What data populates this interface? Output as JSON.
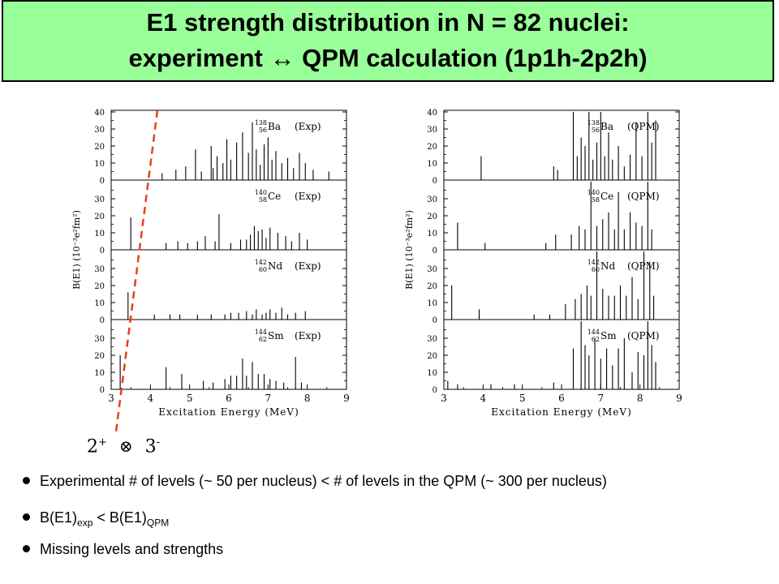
{
  "title": {
    "line1": "E1 strength distribution in N = 82 nuclei:",
    "line2_left": "experiment ",
    "line2_arrow": "↔",
    "line2_right": " QPM calculation (1p1h-2p2h)"
  },
  "coupling_label": {
    "a": "2",
    "a_sup": "+",
    "op": "⊗",
    "b": "3",
    "b_sup": "-"
  },
  "bullets": [
    {
      "text": "Experimental # of levels (~ 50 per nucleus) < # of levels in the QPM (~ 300 per nucleus)"
    },
    {
      "main_a": "B(E1)",
      "sub_a": "exp",
      "mid": " < B(E1)",
      "sub_b": "QPM"
    },
    {
      "text": "Missing levels and strengths"
    }
  ],
  "chart_data": [
    {
      "type": "bar",
      "id": "exp",
      "xlabel": "Excitation Energy (MeV)",
      "ylabel": "B(E1) (10⁻³e²fm²)",
      "xlim": [
        3,
        9
      ],
      "xticks": [
        "3",
        "4",
        "5",
        "6",
        "7",
        "8",
        "9"
      ],
      "ylim": [
        0,
        40
      ],
      "yticks": [
        "0",
        "10",
        "20",
        "30",
        "40"
      ],
      "panels": [
        {
          "nucleus_mass": "138",
          "nucleus_z": "56",
          "symbol": "Ba",
          "tag": "(Exp)",
          "x": [
            4.3,
            4.65,
            4.9,
            5.15,
            5.3,
            5.55,
            5.6,
            5.7,
            5.85,
            5.95,
            6.05,
            6.2,
            6.35,
            6.5,
            6.6,
            6.7,
            6.8,
            6.9,
            7.0,
            7.1,
            7.2,
            7.35,
            7.5,
            7.65,
            7.8,
            7.95,
            8.15,
            8.55
          ],
          "y": [
            4,
            6,
            8,
            18,
            5,
            20,
            7,
            14,
            10,
            24,
            12,
            22,
            28,
            16,
            34,
            18,
            9,
            21,
            25,
            12,
            17,
            10,
            13,
            7,
            16,
            10,
            6,
            5
          ]
        },
        {
          "nucleus_mass": "140",
          "nucleus_z": "58",
          "symbol": "Ce",
          "tag": "(Exp)",
          "x": [
            3.5,
            4.4,
            4.7,
            4.95,
            5.2,
            5.4,
            5.65,
            5.75,
            6.05,
            6.3,
            6.45,
            6.55,
            6.65,
            6.75,
            6.85,
            6.95,
            7.05,
            7.25,
            7.45,
            7.6,
            7.8,
            8.0
          ],
          "y": [
            19,
            4,
            5,
            4,
            5,
            8,
            5,
            21,
            4,
            6,
            6,
            9,
            14,
            11,
            12,
            7,
            13,
            10,
            8,
            5,
            10,
            6
          ]
        },
        {
          "nucleus_mass": "142",
          "nucleus_z": "60",
          "symbol": "Nd",
          "tag": "(Exp)",
          "x": [
            3.43,
            4.1,
            4.5,
            4.75,
            5.2,
            5.55,
            5.9,
            6.05,
            6.25,
            6.45,
            6.6,
            6.7,
            6.85,
            6.95,
            7.05,
            7.2,
            7.35,
            7.5,
            7.7,
            7.95
          ],
          "y": [
            16,
            3,
            3,
            3,
            3,
            3,
            3,
            4,
            4,
            5,
            3,
            6,
            3,
            4,
            6,
            4,
            7,
            3,
            4,
            5
          ]
        },
        {
          "nucleus_mass": "144",
          "nucleus_z": "62",
          "symbol": "Sm",
          "tag": "(Exp)",
          "x": [
            3.23,
            4.4,
            4.8,
            5.35,
            5.6,
            5.9,
            6.05,
            6.2,
            6.35,
            6.45,
            6.6,
            6.75,
            6.9,
            7.05,
            7.2,
            7.4,
            7.7,
            7.85
          ],
          "y": [
            20,
            13,
            9,
            5,
            4,
            6,
            8,
            8,
            18,
            8,
            16,
            9,
            9,
            6,
            5,
            4,
            19,
            4
          ]
        }
      ]
    },
    {
      "type": "bar",
      "id": "qpm",
      "xlabel": "Excitation Energy (MeV)",
      "ylabel": "B(E1) (10⁻³e²fm²)",
      "xlim": [
        3,
        9
      ],
      "xticks": [
        "3",
        "4",
        "5",
        "6",
        "7",
        "8",
        "9"
      ],
      "ylim": [
        0,
        40
      ],
      "yticks": [
        "0",
        "10",
        "20",
        "30",
        "40"
      ],
      "panels": [
        {
          "nucleus_mass": "138",
          "nucleus_z": "56",
          "symbol": "Ba",
          "tag": "(QPM)",
          "x": [
            3.95,
            5.8,
            5.9,
            6.3,
            6.4,
            6.5,
            6.6,
            6.7,
            6.8,
            6.9,
            7.0,
            7.1,
            7.2,
            7.3,
            7.45,
            7.6,
            7.75,
            7.9,
            8.05,
            8.2,
            8.3,
            8.4
          ],
          "y": [
            14,
            8,
            6,
            40,
            14,
            25,
            20,
            40,
            12,
            22,
            40,
            14,
            28,
            12,
            20,
            8,
            15,
            34,
            14,
            40,
            22,
            35
          ]
        },
        {
          "nucleus_mass": "140",
          "nucleus_z": "58",
          "symbol": "Ce",
          "tag": "(QPM)",
          "x": [
            3.35,
            4.05,
            5.6,
            5.85,
            6.25,
            6.45,
            6.6,
            6.75,
            6.9,
            7.05,
            7.2,
            7.35,
            7.45,
            7.6,
            7.75,
            7.9,
            8.05,
            8.2,
            8.3
          ],
          "y": [
            16,
            4,
            4,
            9,
            9,
            14,
            12,
            40,
            14,
            18,
            22,
            12,
            34,
            12,
            22,
            16,
            14,
            40,
            12
          ]
        },
        {
          "nucleus_mass": "142",
          "nucleus_z": "60",
          "symbol": "Nd",
          "tag": "(QPM)",
          "x": [
            3.2,
            3.9,
            5.3,
            5.7,
            6.1,
            6.35,
            6.5,
            6.65,
            6.75,
            6.9,
            7.05,
            7.2,
            7.35,
            7.5,
            7.65,
            7.8,
            7.95,
            8.1,
            8.25,
            8.35
          ],
          "y": [
            20,
            6,
            3,
            3,
            9,
            12,
            15,
            20,
            14,
            40,
            18,
            14,
            14,
            20,
            14,
            25,
            12,
            40,
            34,
            14
          ]
        },
        {
          "nucleus_mass": "144",
          "nucleus_z": "62",
          "symbol": "Sm",
          "tag": "(QPM)",
          "x": [
            3.1,
            3.35,
            4.2,
            4.8,
            5.8,
            6.3,
            6.5,
            6.6,
            6.7,
            6.85,
            7.0,
            7.15,
            7.3,
            7.45,
            7.6,
            7.8,
            7.95,
            8.1,
            8.2,
            8.3,
            8.4
          ],
          "y": [
            5,
            3,
            3,
            3,
            4,
            24,
            40,
            26,
            20,
            30,
            18,
            24,
            14,
            24,
            30,
            10,
            22,
            20,
            40,
            26,
            16
          ]
        }
      ]
    }
  ]
}
